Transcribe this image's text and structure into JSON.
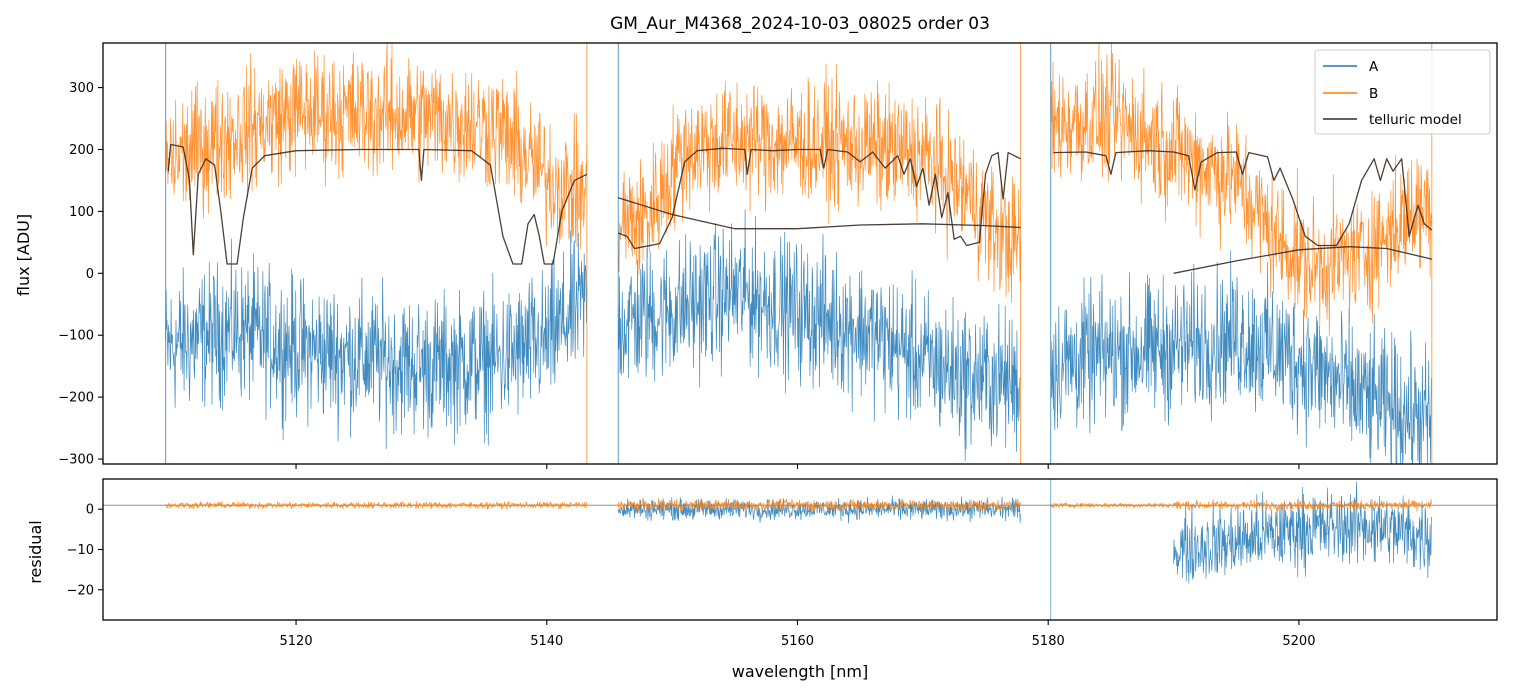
{
  "title": "GM_Aur_M4368_2024-10-03_08025  order 03",
  "xlabel": "wavelength [nm]",
  "colors": {
    "A": "#1f77b4",
    "B": "#ff7f0e",
    "telluric": "#3a2a20",
    "zero_line": "#808080"
  },
  "chart_data": [
    {
      "name": "spectrum",
      "type": "line",
      "ylabel": "flux [ADU]",
      "xlim": [
        5104.6,
        5215.8
      ],
      "ylim": [
        -308,
        372
      ],
      "xticks": [
        5120,
        5140,
        5160,
        5180,
        5200
      ],
      "yticks": [
        -300,
        -200,
        -100,
        0,
        100,
        200,
        300
      ],
      "ytick_labels": [
        "−300",
        "−200",
        "−100",
        "0",
        "100",
        "200",
        "300"
      ],
      "legend": {
        "placement": "top-right",
        "entries": [
          "A",
          "B",
          "telluric model"
        ]
      },
      "segments": [
        {
          "x_range": [
            5109.6,
            5143.2
          ],
          "B_level_nodes": [
            [
              5109.6,
              180
            ],
            [
              5115,
              225
            ],
            [
              5120,
              260
            ],
            [
              5130,
              255
            ],
            [
              5136,
              235
            ],
            [
              5140,
              155
            ],
            [
              5143.2,
              120
            ]
          ],
          "A_level_nodes": [
            [
              5109.6,
              -120
            ],
            [
              5115,
              -90
            ],
            [
              5120,
              -120
            ],
            [
              5130,
              -150
            ],
            [
              5136,
              -140
            ],
            [
              5140,
              -110
            ],
            [
              5143.2,
              -40
            ]
          ],
          "telluric_model": [
            [
              5109.8,
              165
            ],
            [
              5110.0,
              208
            ],
            [
              5111.0,
              204
            ],
            [
              5111.5,
              150
            ],
            [
              5111.8,
              30
            ],
            [
              5112.2,
              160
            ],
            [
              5112.8,
              185
            ],
            [
              5113.5,
              175
            ],
            [
              5114.0,
              100
            ],
            [
              5114.5,
              15
            ],
            [
              5115.3,
              15
            ],
            [
              5115.8,
              90
            ],
            [
              5116.5,
              170
            ],
            [
              5117.5,
              190
            ],
            [
              5120,
              198
            ],
            [
              5125,
              200
            ],
            [
              5128,
              200
            ],
            [
              5129.8,
              200
            ],
            [
              5130.0,
              150
            ],
            [
              5130.2,
              200
            ],
            [
              5134,
              198
            ],
            [
              5135.5,
              175
            ],
            [
              5136.5,
              60
            ],
            [
              5137.3,
              15
            ],
            [
              5138.0,
              15
            ],
            [
              5138.5,
              80
            ],
            [
              5139.0,
              95
            ],
            [
              5139.4,
              60
            ],
            [
              5139.8,
              15
            ],
            [
              5140.5,
              15
            ],
            [
              5141.2,
              100
            ],
            [
              5142.2,
              150
            ],
            [
              5143.2,
              160
            ]
          ]
        },
        {
          "x_range": [
            5145.7,
            5177.8
          ],
          "B_level_nodes": [
            [
              5145.7,
              80
            ],
            [
              5148,
              90
            ],
            [
              5151,
              200
            ],
            [
              5155,
              215
            ],
            [
              5160,
              210
            ],
            [
              5165,
              205
            ],
            [
              5170,
              190
            ],
            [
              5174,
              120
            ],
            [
              5176,
              60
            ],
            [
              5177.8,
              50
            ]
          ],
          "A_level_nodes": [
            [
              5145.7,
              -80
            ],
            [
              5150,
              -60
            ],
            [
              5155,
              -30
            ],
            [
              5160,
              -60
            ],
            [
              5165,
              -90
            ],
            [
              5170,
              -140
            ],
            [
              5174,
              -170
            ],
            [
              5177.8,
              -175
            ]
          ],
          "telluric_model": [
            [
              5145.7,
              65
            ],
            [
              5146.4,
              60
            ],
            [
              5147,
              40
            ],
            [
              5149,
              48
            ],
            [
              5150,
              90
            ],
            [
              5151,
              180
            ],
            [
              5152,
              198
            ],
            [
              5154,
              202
            ],
            [
              5155.8,
              200
            ],
            [
              5156.0,
              160
            ],
            [
              5156.3,
              200
            ],
            [
              5158,
              198
            ],
            [
              5160,
              200
            ],
            [
              5161.8,
              200
            ],
            [
              5162.1,
              170
            ],
            [
              5162.4,
              200
            ],
            [
              5164,
              196
            ],
            [
              5165,
              180
            ],
            [
              5166,
              196
            ],
            [
              5167,
              170
            ],
            [
              5168,
              190
            ],
            [
              5168.5,
              160
            ],
            [
              5169,
              185
            ],
            [
              5169.5,
              140
            ],
            [
              5170,
              170
            ],
            [
              5170.5,
              110
            ],
            [
              5171,
              160
            ],
            [
              5171.5,
              90
            ],
            [
              5172,
              130
            ],
            [
              5172.5,
              55
            ],
            [
              5173,
              60
            ],
            [
              5173.5,
              45
            ],
            [
              5174.5,
              50
            ],
            [
              5175,
              160
            ],
            [
              5175.5,
              190
            ],
            [
              5176,
              195
            ],
            [
              5176.4,
              120
            ],
            [
              5176.8,
              195
            ],
            [
              5177.8,
              185
            ]
          ],
          "continuum_fit": [
            [
              5145.7,
              122
            ],
            [
              5150,
              95
            ],
            [
              5155,
              72
            ],
            [
              5160,
              72
            ],
            [
              5165,
              78
            ],
            [
              5170,
              80
            ],
            [
              5175,
              77
            ],
            [
              5177.8,
              74
            ]
          ]
        },
        {
          "x_range": [
            5180.2,
            5210.6
          ],
          "B_level_nodes": [
            [
              5180.2,
              240
            ],
            [
              5185,
              250
            ],
            [
              5190,
              200
            ],
            [
              5195,
              150
            ],
            [
              5198,
              60
            ],
            [
              5201,
              10
            ],
            [
              5205,
              30
            ],
            [
              5208,
              80
            ],
            [
              5210.6,
              120
            ]
          ],
          "A_level_nodes": [
            [
              5180.2,
              -150
            ],
            [
              5185,
              -130
            ],
            [
              5190,
              -120
            ],
            [
              5195,
              -100
            ],
            [
              5200,
              -140
            ],
            [
              5205,
              -200
            ],
            [
              5210.6,
              -240
            ]
          ],
          "telluric_model": [
            [
              5180.4,
              195
            ],
            [
              5183,
              196
            ],
            [
              5184.6,
              190
            ],
            [
              5185.0,
              160
            ],
            [
              5185.4,
              195
            ],
            [
              5188,
              198
            ],
            [
              5190,
              196
            ],
            [
              5191.2,
              190
            ],
            [
              5191.7,
              135
            ],
            [
              5192.2,
              180
            ],
            [
              5193.5,
              195
            ],
            [
              5195,
              196
            ],
            [
              5195.5,
              160
            ],
            [
              5196.0,
              195
            ],
            [
              5197.5,
              188
            ],
            [
              5198.0,
              150
            ],
            [
              5198.5,
              170
            ],
            [
              5199.5,
              120
            ],
            [
              5200.5,
              60
            ],
            [
              5201.5,
              45
            ],
            [
              5203,
              45
            ],
            [
              5204,
              80
            ],
            [
              5205,
              150
            ],
            [
              5206,
              185
            ],
            [
              5206.5,
              150
            ],
            [
              5207,
              185
            ],
            [
              5207.5,
              165
            ],
            [
              5208.2,
              185
            ],
            [
              5208.8,
              60
            ],
            [
              5209.5,
              110
            ],
            [
              5210,
              80
            ],
            [
              5210.6,
              70
            ]
          ],
          "continuum_fit": [
            [
              5190.0,
              0
            ],
            [
              5195,
              20
            ],
            [
              5200,
              38
            ],
            [
              5204,
              43
            ],
            [
              5207,
              40
            ],
            [
              5210.6,
              23
            ]
          ]
        }
      ]
    },
    {
      "name": "residual",
      "type": "line",
      "ylabel": "residual",
      "xlim": [
        5104.6,
        5215.8
      ],
      "ylim": [
        -27.5,
        7.5
      ],
      "xticks": [
        5120,
        5140,
        5160,
        5180,
        5200
      ],
      "yticks": [
        -20,
        -10,
        0
      ],
      "ytick_labels": [
        "−20",
        "−10",
        "0"
      ],
      "zero_line_y": 1,
      "segments": [
        {
          "x_range": [
            5109.6,
            5143.2
          ],
          "B_level": 1,
          "B_spread": 0.7,
          "A_level": null
        },
        {
          "x_range": [
            5145.7,
            5177.8
          ],
          "B_level": 1,
          "B_spread": 1.2,
          "A_level": 0,
          "A_spread": 2.2
        },
        {
          "x_range": [
            5180.2,
            5190.0
          ],
          "B_level": 1,
          "B_spread": 0.5,
          "A_level": null
        },
        {
          "x_range": [
            5190.0,
            5210.6
          ],
          "B_level": 1,
          "B_spread": 1.0,
          "A_level_nodes": [
            [
              5190,
              -10
            ],
            [
              5195,
              -8
            ],
            [
              5200,
              -5
            ],
            [
              5205,
              -4
            ],
            [
              5210.6,
              -7
            ]
          ],
          "A_spread": 8
        }
      ]
    }
  ]
}
